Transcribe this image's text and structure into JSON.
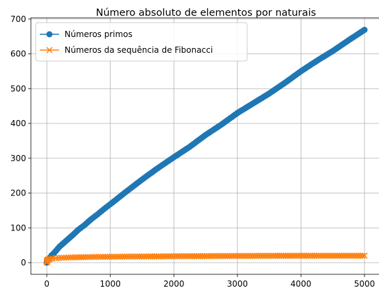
{
  "chart_data": {
    "type": "line",
    "title": "Número absoluto de elementos por naturais",
    "xlabel": "",
    "ylabel": "",
    "xlim": [
      -250,
      5250
    ],
    "ylim": [
      -33.5,
      703.5
    ],
    "xticks": [
      0,
      1000,
      2000,
      3000,
      4000,
      5000
    ],
    "yticks": [
      0,
      100,
      200,
      300,
      400,
      500,
      600,
      700
    ],
    "grid": true,
    "legend_position": "upper-left",
    "series": [
      {
        "name": "Números primos",
        "color": "#1f77b4",
        "marker": "circle",
        "x": [
          0,
          2,
          5,
          10,
          20,
          30,
          50,
          75,
          100,
          150,
          200,
          300,
          400,
          500,
          600,
          700,
          800,
          900,
          1000,
          1250,
          1500,
          1750,
          2000,
          2250,
          2500,
          2750,
          3000,
          3250,
          3500,
          3750,
          4000,
          4250,
          4500,
          4750,
          5000
        ],
        "y": [
          0,
          1,
          3,
          4,
          8,
          10,
          15,
          21,
          25,
          35,
          46,
          62,
          78,
          95,
          109,
          125,
          139,
          154,
          168,
          204,
          239,
          272,
          303,
          333,
          367,
          397,
          430,
          458,
          486,
          517,
          550,
          580,
          608,
          639,
          669
        ]
      },
      {
        "name": "Números da sequência de Fibonacci",
        "color": "#ff7f0e",
        "marker": "x",
        "x": [
          0,
          1,
          2,
          3,
          5,
          8,
          13,
          21,
          34,
          55,
          89,
          144,
          233,
          377,
          610,
          987,
          1597,
          2584,
          4181,
          5000
        ],
        "y": [
          1,
          3,
          4,
          5,
          6,
          7,
          8,
          9,
          10,
          11,
          12,
          13,
          14,
          15,
          16,
          17,
          18,
          19,
          20,
          20
        ]
      }
    ]
  }
}
